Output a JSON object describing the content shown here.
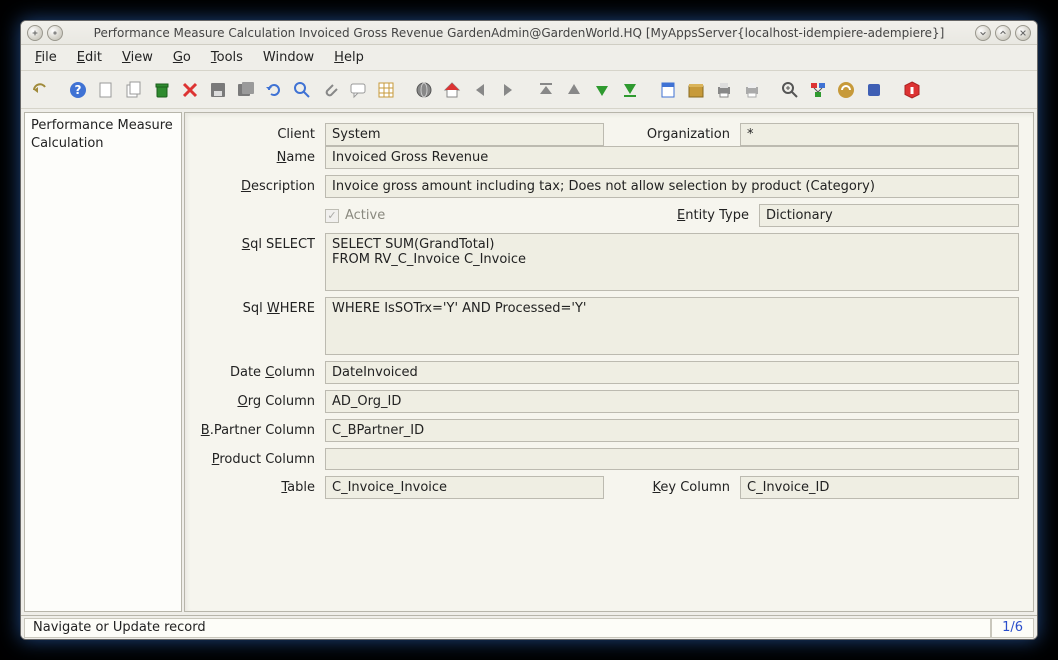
{
  "window": {
    "title": "Performance Measure Calculation  Invoiced Gross Revenue  GardenAdmin@GardenWorld.HQ [MyAppsServer{localhost-idempiere-adempiere}]"
  },
  "menubar": {
    "file": "File",
    "edit": "Edit",
    "view": "View",
    "go": "Go",
    "tools": "Tools",
    "window": "Window",
    "help": "Help"
  },
  "sidebar": {
    "tab": "Performance Measure Calculation"
  },
  "form": {
    "client_label": "Client",
    "client_value": "System",
    "organization_label": "Organization",
    "organization_value": "*",
    "name_label": "Name",
    "name_value": "Invoiced Gross Revenue",
    "description_label": "Description",
    "description_value": "Invoice gross amount including tax; Does not allow selection by product (Category)",
    "active_label": "Active",
    "entitytype_label": "Entity Type",
    "entitytype_value": "Dictionary",
    "sqlselect_label": "Sql SELECT",
    "sqlselect_value": "SELECT SUM(GrandTotal)\nFROM RV_C_Invoice C_Invoice",
    "sqlwhere_label": "Sql WHERE",
    "sqlwhere_value": "WHERE IsSOTrx='Y' AND Processed='Y'",
    "datecolumn_label": "Date Column",
    "datecolumn_value": "DateInvoiced",
    "orgcolumn_label": "Org Column",
    "orgcolumn_value": "AD_Org_ID",
    "bpartnercolumn_label": "B.Partner Column",
    "bpartnercolumn_value": "C_BPartner_ID",
    "productcolumn_label": "Product Column",
    "productcolumn_value": "",
    "table_label": "Table",
    "table_value": "C_Invoice_Invoice",
    "keycolumn_label": "Key Column",
    "keycolumn_value": "C_Invoice_ID"
  },
  "statusbar": {
    "message": "Navigate or Update record",
    "record_indicator": "1/6"
  },
  "toolbar": {
    "icons": [
      {
        "name": "undo-icon",
        "type": "undo"
      },
      {
        "name": "sep"
      },
      {
        "name": "help-icon",
        "type": "help"
      },
      {
        "name": "new-icon",
        "type": "new"
      },
      {
        "name": "copy-icon",
        "type": "copy"
      },
      {
        "name": "delete-icon",
        "type": "trash"
      },
      {
        "name": "delete-selection-icon",
        "type": "x-red"
      },
      {
        "name": "save-icon",
        "type": "save"
      },
      {
        "name": "save-create-icon",
        "type": "save2"
      },
      {
        "name": "refresh-icon",
        "type": "refresh"
      },
      {
        "name": "find-icon",
        "type": "magnify"
      },
      {
        "name": "attachment-icon",
        "type": "clip"
      },
      {
        "name": "chat-icon",
        "type": "chat"
      },
      {
        "name": "grid-toggle-icon",
        "type": "grid"
      },
      {
        "name": "sep"
      },
      {
        "name": "history-icon",
        "type": "globe"
      },
      {
        "name": "home-icon",
        "type": "home"
      },
      {
        "name": "back-icon",
        "type": "arrow-left"
      },
      {
        "name": "forward-icon",
        "type": "arrow-right"
      },
      {
        "name": "sep"
      },
      {
        "name": "parent-icon",
        "type": "arrow-up-bar"
      },
      {
        "name": "detail-icon",
        "type": "arrow-up"
      },
      {
        "name": "first-icon",
        "type": "arrow-down-green"
      },
      {
        "name": "last-icon",
        "type": "arrow-down-bar-green"
      },
      {
        "name": "sep"
      },
      {
        "name": "report-icon",
        "type": "report"
      },
      {
        "name": "archive-icon",
        "type": "archive"
      },
      {
        "name": "print-icon",
        "type": "print"
      },
      {
        "name": "printpreview-icon",
        "type": "print2"
      },
      {
        "name": "sep"
      },
      {
        "name": "zoom-icon",
        "type": "zoom"
      },
      {
        "name": "workflow-icon",
        "type": "workflow"
      },
      {
        "name": "request-icon",
        "type": "request"
      },
      {
        "name": "product-icon",
        "type": "product"
      },
      {
        "name": "sep"
      },
      {
        "name": "exit-icon",
        "type": "exit"
      }
    ]
  }
}
